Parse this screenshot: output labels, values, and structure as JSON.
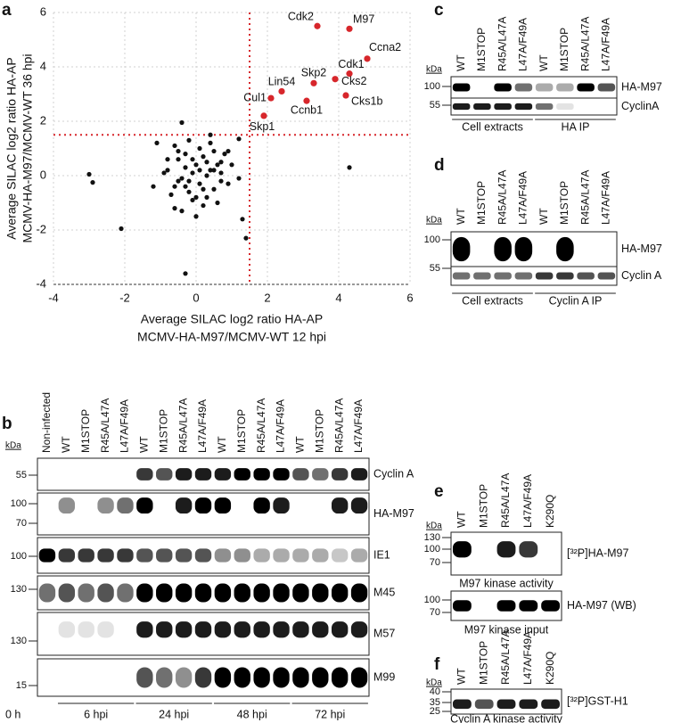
{
  "panel_a": {
    "letter": "a",
    "xlabel": [
      "Average SILAC log2 ratio HA-AP",
      "MCMV-HA-M97/MCMV-WT 12 hpi"
    ],
    "ylabel": [
      "Average SILAC log2 ratio HA-AP",
      "MCMV-HA-M97/MCMV-WT 36 hpi"
    ],
    "xlim": [
      -4,
      6
    ],
    "ylim": [
      -4,
      6
    ],
    "xticks": [
      -4,
      -2,
      0,
      2,
      4,
      6
    ],
    "yticks": [
      -4,
      -2,
      0,
      2,
      4,
      6
    ],
    "threshold": 1.5,
    "grid": true,
    "point_color": "#111111",
    "highlight_color": "#d7262b",
    "labeled_points": {
      "names": [
        "Cdk2",
        "M97",
        "Ccna2",
        "Lin54",
        "Skp2",
        "Cdk1",
        "Cul1",
        "Cks2",
        "Ccnb1",
        "Cks1b",
        "Skp1"
      ],
      "x": [
        3.4,
        4.3,
        4.8,
        2.4,
        3.3,
        4.3,
        2.1,
        3.9,
        3.1,
        4.2,
        1.9
      ],
      "y": [
        5.5,
        5.4,
        4.3,
        3.1,
        3.4,
        3.75,
        2.85,
        3.55,
        2.75,
        2.95,
        2.2
      ]
    },
    "points": {
      "x": [
        -0.8,
        -0.6,
        -0.5,
        -0.4,
        -0.3,
        -0.2,
        -0.1,
        0,
        0.1,
        0.2,
        0.3,
        0.4,
        0.5,
        0.6,
        0.7,
        -0.7,
        -0.5,
        -0.3,
        -0.1,
        0.1,
        0.3,
        0.5,
        0.7,
        0.9,
        -0.9,
        -0.6,
        -0.2,
        0.2,
        0.6,
        1.0,
        -0.4,
        0,
        0.4,
        0.8,
        -0.5,
        -0.1,
        0.3,
        0.7,
        -0.3,
        0.1,
        0.5,
        -0.2,
        0.2,
        0,
        1.2,
        -1.2,
        0.9,
        -0.8,
        0.4,
        -0.6,
        -3.0,
        -2.9,
        -2.1,
        -0.4,
        -0.3,
        4.3,
        -1.1,
        1.3,
        1.4,
        1.2
      ],
      "y": [
        0.2,
        -0.4,
        0.6,
        -0.1,
        0.3,
        -0.6,
        0.1,
        0.4,
        -0.3,
        0.7,
        0,
        0.2,
        -0.5,
        0.4,
        -0.2,
        -0.7,
        -0.2,
        0.8,
        -0.9,
        1.0,
        -0.8,
        0.9,
        0.5,
        -0.3,
        0.1,
        1.1,
        1.3,
        -1.1,
        -1.0,
        0.4,
        -1.3,
        -1.5,
        1.2,
        0.8,
        0.9,
        0.6,
        0.5,
        0.1,
        -0.4,
        0.2,
        0.2,
        -0.2,
        -0.5,
        -0.8,
        -0.1,
        -0.4,
        0.9,
        0.6,
        1.5,
        -1.2,
        0.05,
        -0.25,
        -1.95,
        1.95,
        -3.6,
        0.3,
        1.2,
        -1.6,
        -2.3,
        1.35
      ]
    }
  },
  "panel_b": {
    "letter": "b",
    "unit": "kDa",
    "lanes": [
      "Non-infected",
      "WT",
      "M1STOP",
      "R45A/L47A",
      "L47A/F49A",
      "WT",
      "M1STOP",
      "R45A/L47A",
      "L47A/F49A",
      "WT",
      "M1STOP",
      "R45A/L47A",
      "L47A/F49A",
      "WT",
      "M1STOP",
      "R45A/L47A",
      "L47A/F49A"
    ],
    "blots": [
      {
        "label": "Cyclin A",
        "markers": [
          55
        ]
      },
      {
        "label": "HA-M97",
        "markers": [
          100,
          70
        ]
      },
      {
        "label": "IE1",
        "markers": [
          100
        ]
      },
      {
        "label": "M45",
        "markers": [
          130
        ]
      },
      {
        "label": "M57",
        "markers": [
          130
        ]
      },
      {
        "label": "M99",
        "markers": [
          15
        ]
      }
    ],
    "time_start": "0 h",
    "groups": [
      "6 hpi",
      "24 hpi",
      "48 hpi",
      "72 hpi"
    ]
  },
  "panel_c": {
    "letter": "c",
    "unit": "kDa",
    "lanes": [
      "WT",
      "M1STOP",
      "R45A/L47A",
      "L47A/F49A",
      "WT",
      "M1STOP",
      "R45A/L47A",
      "L47A/F49A"
    ],
    "blots": [
      {
        "label": "HA-M97",
        "markers": [
          100
        ]
      },
      {
        "label": "CyclinA",
        "markers": [
          55
        ]
      }
    ],
    "groups": [
      "Cell extracts",
      "HA IP"
    ]
  },
  "panel_d": {
    "letter": "d",
    "unit": "kDa",
    "lanes": [
      "WT",
      "M1STOP",
      "R45A/L47A",
      "L47A/F49A",
      "WT",
      "M1STOP",
      "R45A/L47A",
      "L47A/F49A"
    ],
    "blots": [
      {
        "label": "HA-M97",
        "markers": [
          100
        ]
      },
      {
        "label": "Cyclin A",
        "markers": [
          55
        ]
      }
    ],
    "groups": [
      "Cell extracts",
      "Cyclin A IP"
    ]
  },
  "panel_e": {
    "letter": "e",
    "unit": "kDa",
    "lanes": [
      "WT",
      "M1STOP",
      "R45A/L47A",
      "L47A/F49A",
      "K290Q"
    ],
    "blots": [
      {
        "label": "[³²P]HA-M97",
        "markers": [
          130,
          100,
          70
        ],
        "caption": "M97 kinase activity"
      },
      {
        "label": "HA-M97 (WB)",
        "markers": [
          100,
          70
        ],
        "caption": "M97 kinase input"
      }
    ]
  },
  "panel_f": {
    "letter": "f",
    "unit": "kDa",
    "lanes": [
      "WT",
      "M1STOP",
      "R45A/L47A",
      "L47A/F49A",
      "K290Q"
    ],
    "blots": [
      {
        "label": "[³²P]GST-H1",
        "markers": [
          40,
          35,
          25
        ],
        "caption": "Cyclin A kinase activity"
      }
    ]
  }
}
